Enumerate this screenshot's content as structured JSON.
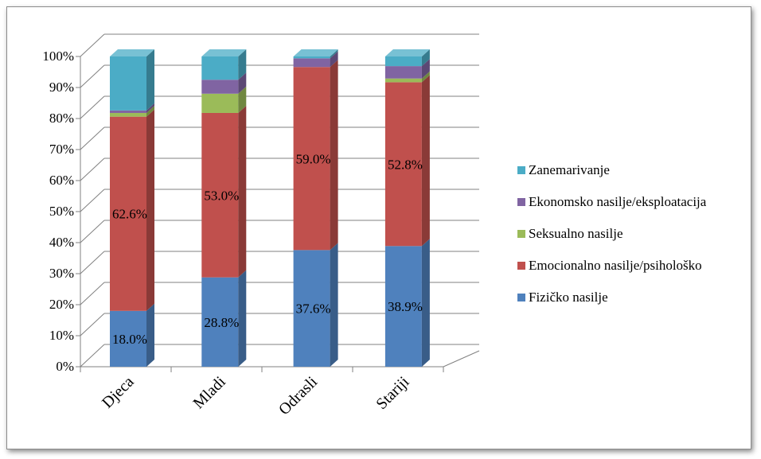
{
  "chart_data": {
    "type": "bar",
    "stacked": true,
    "three_d": true,
    "categories": [
      "Djeca",
      "Mladi",
      "Odrasli",
      "Stariji"
    ],
    "series": [
      {
        "name": "Fizičko nasilje",
        "color": "#4f81bd",
        "values": [
          18.0,
          28.8,
          37.6,
          38.9
        ]
      },
      {
        "name": "Emocionalno nasilje/psihološko",
        "color": "#c0504d",
        "values": [
          62.6,
          53.0,
          59.0,
          52.8
        ]
      },
      {
        "name": "Seksualno nasilje",
        "color": "#9bbb59",
        "values": [
          1.2,
          6.2,
          0.0,
          1.2
        ]
      },
      {
        "name": "Ekonomsko nasilje/eksploatacija",
        "color": "#8064a2",
        "values": [
          0.8,
          4.5,
          2.8,
          4.0
        ]
      },
      {
        "name": "Zanemarivanje",
        "color": "#4bacc6",
        "values": [
          17.4,
          7.5,
          0.6,
          3.1
        ]
      }
    ],
    "data_labels": [
      {
        "series": 0,
        "labels": [
          "18.0%",
          "28.8%",
          "37.6%",
          "38.9%"
        ]
      },
      {
        "series": 1,
        "labels": [
          "62.6%",
          "53.0%",
          "59.0%",
          "52.8%"
        ]
      }
    ],
    "yticks": [
      "0%",
      "10%",
      "20%",
      "30%",
      "40%",
      "50%",
      "60%",
      "70%",
      "80%",
      "90%",
      "100%"
    ],
    "ylim": [
      0,
      100
    ],
    "grid": true,
    "legend_position": "right",
    "legend_order": [
      4,
      3,
      2,
      1,
      0
    ]
  }
}
